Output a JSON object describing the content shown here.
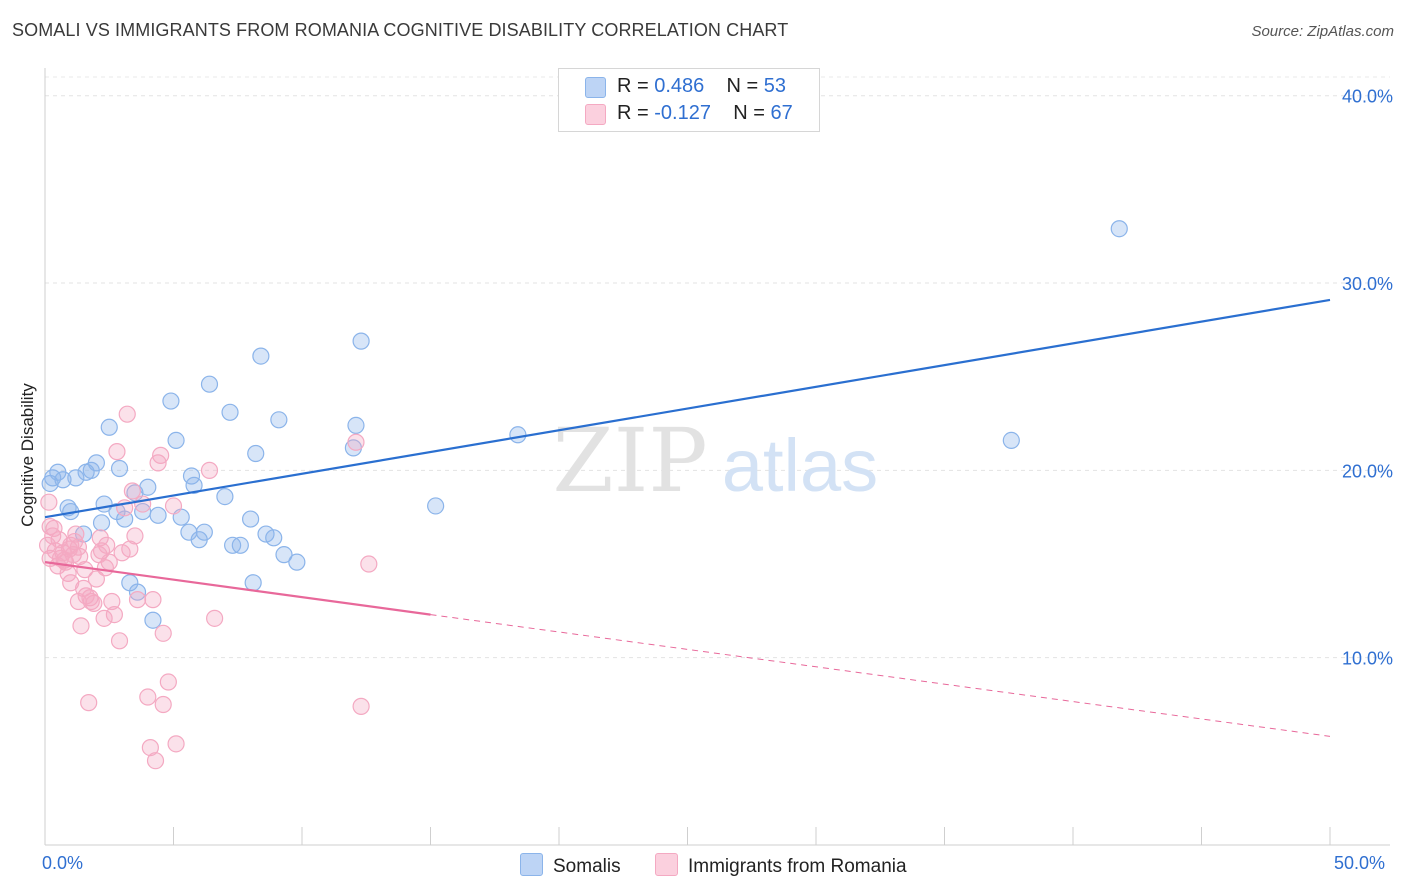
{
  "title": "SOMALI VS IMMIGRANTS FROM ROMANIA COGNITIVE DISABILITY CORRELATION CHART",
  "source": "Source: ZipAtlas.com",
  "watermark": {
    "zip": "ZIP",
    "atlas": "atlas"
  },
  "legend": {
    "series1": {
      "r_label": "R =",
      "r_value": "0.486",
      "n_label": "N =",
      "n_value": "53"
    },
    "series2": {
      "r_label": "R =",
      "r_value": "-0.127",
      "n_label": "N =",
      "n_value": "67"
    }
  },
  "bottom_legend": {
    "series1": "Somalis",
    "series2": "Immigrants from Romania"
  },
  "chart_data": {
    "type": "scatter",
    "title": "SOMALI VS IMMIGRANTS FROM ROMANIA COGNITIVE DISABILITY CORRELATION CHART",
    "xlabel": "",
    "ylabel": "Cognitive Disability",
    "xlim": [
      0,
      50
    ],
    "ylim": [
      0,
      41
    ],
    "x_tick_labels": [
      "0.0%",
      "50.0%"
    ],
    "y_ticks": [
      10,
      20,
      30,
      40
    ],
    "y_tick_labels": [
      "10.0%",
      "20.0%",
      "30.0%",
      "40.0%"
    ],
    "grid": true,
    "colors": {
      "somalis": "#8bb4ea",
      "somalis_line": "#2a6fd0",
      "romania": "#f4a9c2",
      "romania_line": "#e8689a",
      "tick_text": "#2f6fd1"
    },
    "series": [
      {
        "name": "Somalis",
        "trend": {
          "x": [
            0,
            50
          ],
          "y": [
            17.5,
            29.1
          ],
          "style": "solid"
        },
        "points": [
          [
            0.2,
            19.3
          ],
          [
            0.3,
            19.6
          ],
          [
            0.5,
            19.9
          ],
          [
            0.7,
            19.5
          ],
          [
            0.9,
            18.0
          ],
          [
            1.0,
            17.8
          ],
          [
            1.2,
            19.6
          ],
          [
            1.5,
            16.6
          ],
          [
            1.6,
            19.9
          ],
          [
            1.8,
            20.0
          ],
          [
            2.0,
            20.4
          ],
          [
            2.2,
            17.2
          ],
          [
            2.3,
            18.2
          ],
          [
            2.5,
            22.3
          ],
          [
            2.8,
            17.8
          ],
          [
            2.9,
            20.1
          ],
          [
            3.1,
            17.4
          ],
          [
            3.3,
            14.0
          ],
          [
            3.5,
            18.8
          ],
          [
            3.6,
            13.5
          ],
          [
            3.8,
            17.8
          ],
          [
            4.0,
            19.1
          ],
          [
            4.2,
            12.0
          ],
          [
            4.4,
            17.6
          ],
          [
            4.9,
            23.7
          ],
          [
            5.1,
            21.6
          ],
          [
            5.3,
            17.5
          ],
          [
            5.6,
            16.7
          ],
          [
            5.7,
            19.7
          ],
          [
            5.8,
            19.2
          ],
          [
            6.0,
            16.3
          ],
          [
            6.2,
            16.7
          ],
          [
            6.4,
            24.6
          ],
          [
            7.0,
            18.6
          ],
          [
            7.2,
            23.1
          ],
          [
            7.3,
            16.0
          ],
          [
            7.6,
            16.0
          ],
          [
            8.0,
            17.4
          ],
          [
            8.1,
            14.0
          ],
          [
            8.2,
            20.9
          ],
          [
            8.4,
            26.1
          ],
          [
            8.6,
            16.6
          ],
          [
            8.9,
            16.4
          ],
          [
            9.1,
            22.7
          ],
          [
            9.3,
            15.5
          ],
          [
            9.8,
            15.1
          ],
          [
            12.0,
            21.2
          ],
          [
            12.1,
            22.4
          ],
          [
            12.3,
            26.9
          ],
          [
            15.2,
            18.1
          ],
          [
            18.4,
            21.9
          ],
          [
            37.6,
            21.6
          ],
          [
            41.8,
            32.9
          ]
        ]
      },
      {
        "name": "Immigrants from Romania",
        "trend": {
          "x": [
            0,
            15
          ],
          "y": [
            15.1,
            12.3
          ],
          "style": "solid",
          "dashed_extension_to": [
            50,
            5.8
          ]
        },
        "points": [
          [
            0.1,
            16.0
          ],
          [
            0.2,
            15.3
          ],
          [
            0.2,
            17.0
          ],
          [
            0.3,
            16.5
          ],
          [
            0.4,
            15.7
          ],
          [
            0.5,
            14.9
          ],
          [
            0.6,
            15.3
          ],
          [
            0.7,
            15.6
          ],
          [
            0.8,
            15.1
          ],
          [
            0.9,
            14.5
          ],
          [
            1.0,
            14.0
          ],
          [
            1.0,
            16.0
          ],
          [
            1.1,
            15.5
          ],
          [
            1.2,
            16.6
          ],
          [
            1.3,
            13.0
          ],
          [
            1.3,
            15.9
          ],
          [
            1.4,
            11.7
          ],
          [
            1.5,
            13.7
          ],
          [
            1.6,
            13.3
          ],
          [
            1.7,
            7.6
          ],
          [
            1.8,
            13.0
          ],
          [
            1.9,
            12.9
          ],
          [
            2.0,
            14.2
          ],
          [
            2.1,
            15.5
          ],
          [
            2.2,
            15.7
          ],
          [
            2.3,
            12.1
          ],
          [
            2.4,
            16.0
          ],
          [
            2.5,
            15.1
          ],
          [
            2.6,
            13.0
          ],
          [
            2.7,
            12.3
          ],
          [
            2.8,
            21.0
          ],
          [
            2.9,
            10.9
          ],
          [
            3.0,
            15.6
          ],
          [
            3.1,
            18.0
          ],
          [
            3.2,
            23.0
          ],
          [
            3.3,
            15.8
          ],
          [
            3.4,
            18.9
          ],
          [
            3.5,
            16.5
          ],
          [
            3.6,
            13.1
          ],
          [
            3.8,
            18.2
          ],
          [
            4.0,
            7.9
          ],
          [
            4.1,
            5.2
          ],
          [
            4.2,
            13.1
          ],
          [
            4.3,
            4.5
          ],
          [
            4.4,
            20.4
          ],
          [
            4.5,
            20.8
          ],
          [
            4.6,
            11.3
          ],
          [
            4.6,
            7.5
          ],
          [
            4.8,
            8.7
          ],
          [
            5.0,
            18.1
          ],
          [
            5.1,
            5.4
          ],
          [
            6.4,
            20.0
          ],
          [
            6.6,
            12.1
          ],
          [
            12.1,
            21.5
          ],
          [
            12.3,
            7.4
          ],
          [
            12.6,
            15.0
          ],
          [
            0.15,
            18.3
          ],
          [
            0.35,
            16.9
          ],
          [
            0.55,
            16.3
          ],
          [
            0.75,
            15.2
          ],
          [
            0.95,
            15.8
          ],
          [
            1.15,
            16.2
          ],
          [
            1.35,
            15.4
          ],
          [
            1.55,
            14.7
          ],
          [
            1.75,
            13.2
          ],
          [
            2.15,
            16.4
          ],
          [
            2.35,
            14.8
          ]
        ]
      }
    ]
  }
}
